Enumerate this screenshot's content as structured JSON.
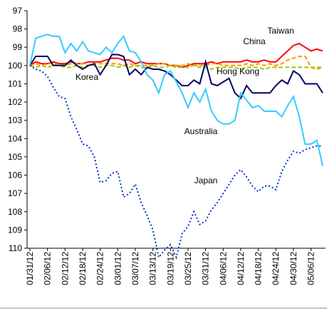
{
  "chart_data": {
    "type": "line",
    "categories": [
      "01/31/12",
      null,
      null,
      "02/06/12",
      null,
      null,
      "02/12/12",
      null,
      null,
      "02/18/12",
      null,
      null,
      "02/24/12",
      null,
      null,
      "03/01/12",
      null,
      null,
      "03/07/12",
      null,
      null,
      "03/13/12",
      null,
      null,
      "03/19/12",
      null,
      null,
      "03/25/12",
      null,
      null,
      "03/31/12",
      null,
      null,
      "04/06/12",
      null,
      null,
      "04/12/12",
      null,
      null,
      "04/18/12",
      null,
      null,
      "04/24/12",
      null,
      null,
      "04/30/12",
      null,
      null,
      "05/06/12",
      null,
      null
    ],
    "ylim": [
      97,
      110
    ],
    "inverted": true,
    "yticks": [
      97,
      98,
      99,
      100,
      101,
      102,
      103,
      104,
      105,
      106,
      107,
      108,
      109,
      110
    ],
    "series": [
      {
        "name": "Taiwan",
        "color": "#ff0000",
        "dash": "solid",
        "values": [
          100.0,
          99.8,
          99.9,
          99.9,
          99.8,
          99.9,
          99.9,
          99.8,
          99.9,
          99.9,
          99.8,
          99.8,
          99.8,
          99.7,
          99.6,
          99.6,
          99.7,
          99.7,
          99.9,
          99.8,
          99.9,
          99.9,
          99.9,
          99.9,
          100.0,
          100.0,
          100.1,
          100.0,
          99.9,
          99.9,
          99.9,
          99.8,
          99.9,
          99.8,
          99.8,
          99.8,
          99.8,
          99.7,
          99.8,
          99.8,
          99.7,
          99.8,
          99.8,
          99.5,
          99.2,
          98.9,
          98.8,
          99.0,
          99.2,
          99.1,
          99.2
        ]
      },
      {
        "name": "China",
        "color": "#ff9900",
        "dash": "dashed",
        "values": [
          100.0,
          99.9,
          100.0,
          99.9,
          99.9,
          100.0,
          100.0,
          99.9,
          99.9,
          99.9,
          100.0,
          99.9,
          99.9,
          99.9,
          99.9,
          99.9,
          100.0,
          99.9,
          100.0,
          100.0,
          100.0,
          100.0,
          99.9,
          99.9,
          100.0,
          100.0,
          100.0,
          99.9,
          100.0,
          100.0,
          100.0,
          99.9,
          99.9,
          100.0,
          100.0,
          100.0,
          100.0,
          99.9,
          100.0,
          99.9,
          100.0,
          99.9,
          100.0,
          99.9,
          99.7,
          99.6,
          99.5,
          99.5,
          100.1,
          100.1,
          100.1
        ]
      },
      {
        "name": "Korea",
        "color": "#99cc00",
        "dash": "dashed",
        "values": [
          100.0,
          100.1,
          100.0,
          100.1,
          100.0,
          100.0,
          100.1,
          100.1,
          100.0,
          100.1,
          100.0,
          100.0,
          100.1,
          100.0,
          100.0,
          100.1,
          100.0,
          100.1,
          100.0,
          100.1,
          100.1,
          100.0,
          100.1,
          100.1,
          100.0,
          100.1,
          100.1,
          100.1,
          100.0,
          100.1,
          100.1,
          100.2,
          100.1,
          100.1,
          100.1,
          100.1,
          100.2,
          100.1,
          100.1,
          100.1,
          100.2,
          100.1,
          100.1,
          100.1,
          100.1,
          100.1,
          100.1,
          100.1,
          100.1,
          100.2,
          100.1
        ]
      },
      {
        "name": "Hong Kong",
        "color": "#000066",
        "dash": "solid",
        "values": [
          100.0,
          99.5,
          99.5,
          99.5,
          100.0,
          100.0,
          100.0,
          99.7,
          100.0,
          100.2,
          100.0,
          99.9,
          100.5,
          100.0,
          99.4,
          99.4,
          99.5,
          100.5,
          100.2,
          100.5,
          100.1,
          100.2,
          100.2,
          100.3,
          100.5,
          100.8,
          101.1,
          101.1,
          100.8,
          101.0,
          99.8,
          101.0,
          101.1,
          100.9,
          100.7,
          101.5,
          101.8,
          101.1,
          101.5,
          101.5,
          101.5,
          101.5,
          101.1,
          100.8,
          101.0,
          100.3,
          100.5,
          101.0,
          101.0,
          101.0,
          101.5
        ]
      },
      {
        "name": "Australia",
        "color": "#33ccff",
        "dash": "solid",
        "values": [
          100.0,
          98.5,
          98.4,
          98.3,
          98.4,
          98.4,
          99.3,
          98.8,
          99.2,
          98.7,
          99.2,
          99.3,
          99.4,
          99.0,
          99.3,
          98.8,
          98.4,
          99.2,
          99.3,
          99.8,
          100.5,
          100.8,
          101.5,
          100.5,
          100.3,
          100.9,
          101.5,
          102.3,
          101.5,
          102.0,
          101.3,
          102.5,
          103.0,
          103.2,
          103.2,
          103.0,
          101.5,
          101.9,
          102.3,
          102.2,
          102.5,
          102.5,
          102.5,
          102.8,
          102.2,
          101.7,
          102.8,
          104.3,
          104.3,
          104.1,
          105.5
        ]
      },
      {
        "name": "Japan",
        "color": "#0033cc",
        "dash": "dotted",
        "values": [
          100.0,
          100.2,
          100.3,
          100.6,
          101.2,
          101.7,
          101.8,
          102.8,
          103.5,
          104.3,
          104.4,
          105.0,
          106.4,
          106.3,
          105.9,
          105.8,
          107.2,
          107.0,
          106.5,
          107.5,
          108.2,
          109.0,
          110.5,
          110.1,
          109.8,
          110.5,
          109.2,
          108.8,
          108.0,
          108.7,
          108.5,
          107.9,
          107.5,
          107.0,
          106.5,
          106.0,
          105.7,
          106.1,
          106.6,
          106.9,
          106.6,
          106.6,
          106.8,
          105.8,
          105.2,
          104.7,
          104.8,
          104.6,
          104.5,
          104.4,
          104.4
        ]
      }
    ]
  }
}
